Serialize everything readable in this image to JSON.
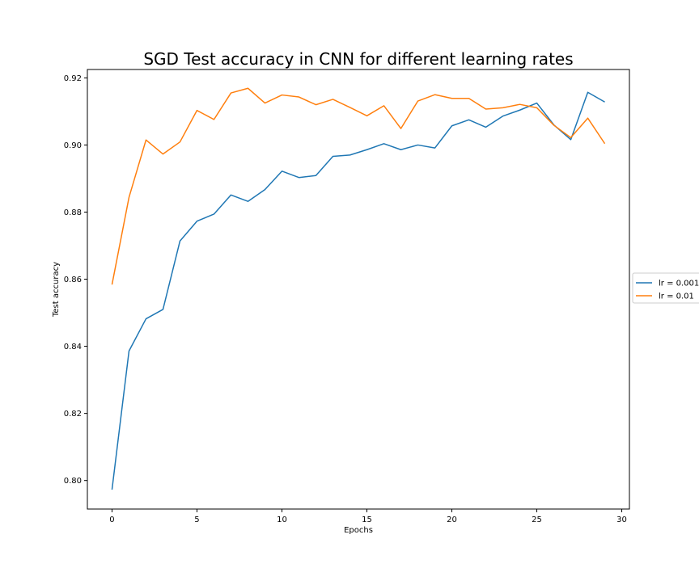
{
  "chart_data": {
    "type": "line",
    "title": "SGD Test accuracy in CNN for different learning rates",
    "xlabel": "Epochs",
    "ylabel": "Test accuracy",
    "xlim": [
      -1.45,
      30.45
    ],
    "ylim": [
      0.7915,
      0.9225
    ],
    "xticks": [
      0,
      5,
      10,
      15,
      20,
      25,
      30
    ],
    "xtick_labels": [
      "0",
      "5",
      "10",
      "15",
      "20",
      "25",
      "30"
    ],
    "yticks": [
      0.8,
      0.82,
      0.84,
      0.86,
      0.88,
      0.9,
      0.92
    ],
    "ytick_labels": [
      "0.80",
      "0.82",
      "0.84",
      "0.86",
      "0.88",
      "0.90",
      "0.92"
    ],
    "grid": false,
    "legend_position": "right-outside",
    "x": [
      0,
      1,
      2,
      3,
      4,
      5,
      6,
      7,
      8,
      9,
      10,
      11,
      12,
      13,
      14,
      15,
      16,
      17,
      18,
      19,
      20,
      21,
      22,
      23,
      24,
      25,
      26,
      27,
      28,
      29
    ],
    "series": [
      {
        "name": "lr = 0.001",
        "color": "#1f77b4",
        "values": [
          0.7973,
          0.8386,
          0.8482,
          0.851,
          0.8714,
          0.8773,
          0.8794,
          0.8851,
          0.8832,
          0.8867,
          0.8922,
          0.8903,
          0.8909,
          0.8966,
          0.897,
          0.8986,
          0.9004,
          0.8986,
          0.9,
          0.8991,
          0.9057,
          0.9075,
          0.9053,
          0.9086,
          0.9104,
          0.9125,
          0.906,
          0.9016,
          0.9157,
          0.9128
        ]
      },
      {
        "name": "lr = 0.01",
        "color": "#ff7f0e",
        "values": [
          0.8584,
          0.8844,
          0.9015,
          0.8973,
          0.9009,
          0.9103,
          0.9076,
          0.9155,
          0.9169,
          0.9125,
          0.9149,
          0.9143,
          0.912,
          0.9136,
          0.9112,
          0.9087,
          0.9117,
          0.9049,
          0.9131,
          0.915,
          0.9139,
          0.9139,
          0.9107,
          0.9111,
          0.9121,
          0.9111,
          0.9059,
          0.9022,
          0.908,
          0.9004
        ]
      }
    ]
  }
}
